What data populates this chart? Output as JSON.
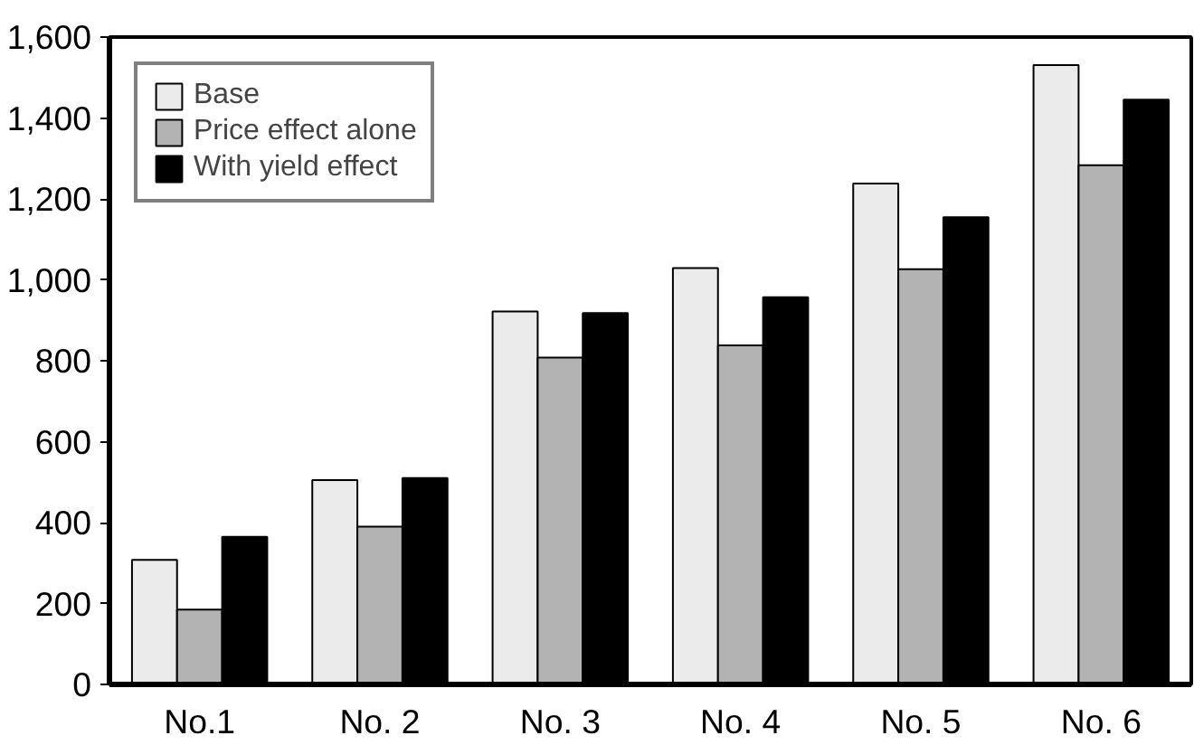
{
  "chart_data": {
    "type": "bar",
    "categories": [
      "No.1",
      "No. 2",
      "No. 3",
      "No. 4",
      "No. 5",
      "No. 6"
    ],
    "series": [
      {
        "name": "Base",
        "color": "#ebebeb",
        "values": [
          308,
          505,
          922,
          1029,
          1238,
          1531
        ]
      },
      {
        "name": "Price effect alone",
        "color": "#b3b3b3",
        "values": [
          185,
          390,
          808,
          838,
          1026,
          1283
        ]
      },
      {
        "name": "With yield effect",
        "color": "#000000",
        "values": [
          365,
          510,
          918,
          957,
          1155,
          1445
        ]
      }
    ],
    "ylim": [
      0,
      1600
    ],
    "yticks": [
      {
        "value": 0,
        "label": "0"
      },
      {
        "value": 200,
        "label": "200"
      },
      {
        "value": 400,
        "label": "400"
      },
      {
        "value": 600,
        "label": "600"
      },
      {
        "value": 800,
        "label": "800"
      },
      {
        "value": 1000,
        "label": "1,000"
      },
      {
        "value": 1200,
        "label": "1,200"
      },
      {
        "value": 1400,
        "label": "1,400"
      },
      {
        "value": 1600,
        "label": "1,600"
      }
    ],
    "grid": false,
    "legend": "top left"
  }
}
